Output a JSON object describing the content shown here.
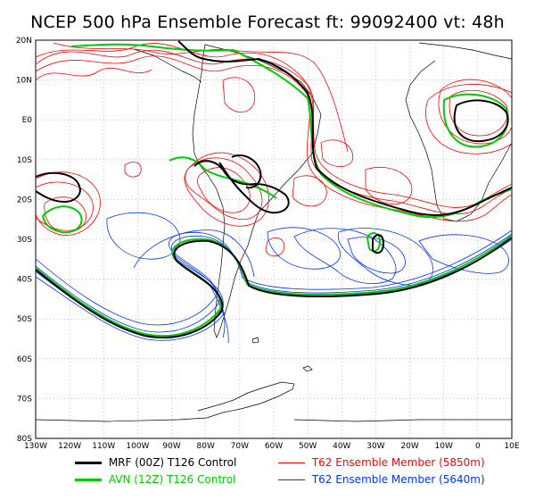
{
  "title": "NCEP 500 hPa Ensemble Forecast   ft: 99092400 vt: 48h",
  "map": {
    "lat_labels": [
      "20N",
      "10N",
      "E0",
      "10S",
      "20S",
      "30S",
      "40S",
      "50S",
      "60S",
      "70S",
      "80S"
    ],
    "lon_labels": [
      "130W",
      "120W",
      "110W",
      "100W",
      "90W",
      "80W",
      "70W",
      "60W",
      "50W",
      "40W",
      "30W",
      "20W",
      "10W",
      "0",
      "10E"
    ],
    "lon_range": [
      -130,
      10
    ],
    "lat_range": [
      -80,
      20
    ],
    "grid": true
  },
  "colors": {
    "mrf": "#000000",
    "avn": "#00cc00",
    "t62_5850": "#ff0000",
    "t62_5640": "#0033ff",
    "coast": "#000000",
    "grid": "#888888"
  },
  "legend": [
    {
      "label": "MRF (00Z) T126 Control",
      "color": "#000000"
    },
    {
      "label": "AVN (12Z) T126 Control",
      "color": "#00cc00"
    },
    {
      "label": "T62 Ensemble Member (5850m)",
      "color": "#ff0000"
    },
    {
      "label": "T62 Ensemble Member (5640m)",
      "color": "#0033ff"
    }
  ]
}
